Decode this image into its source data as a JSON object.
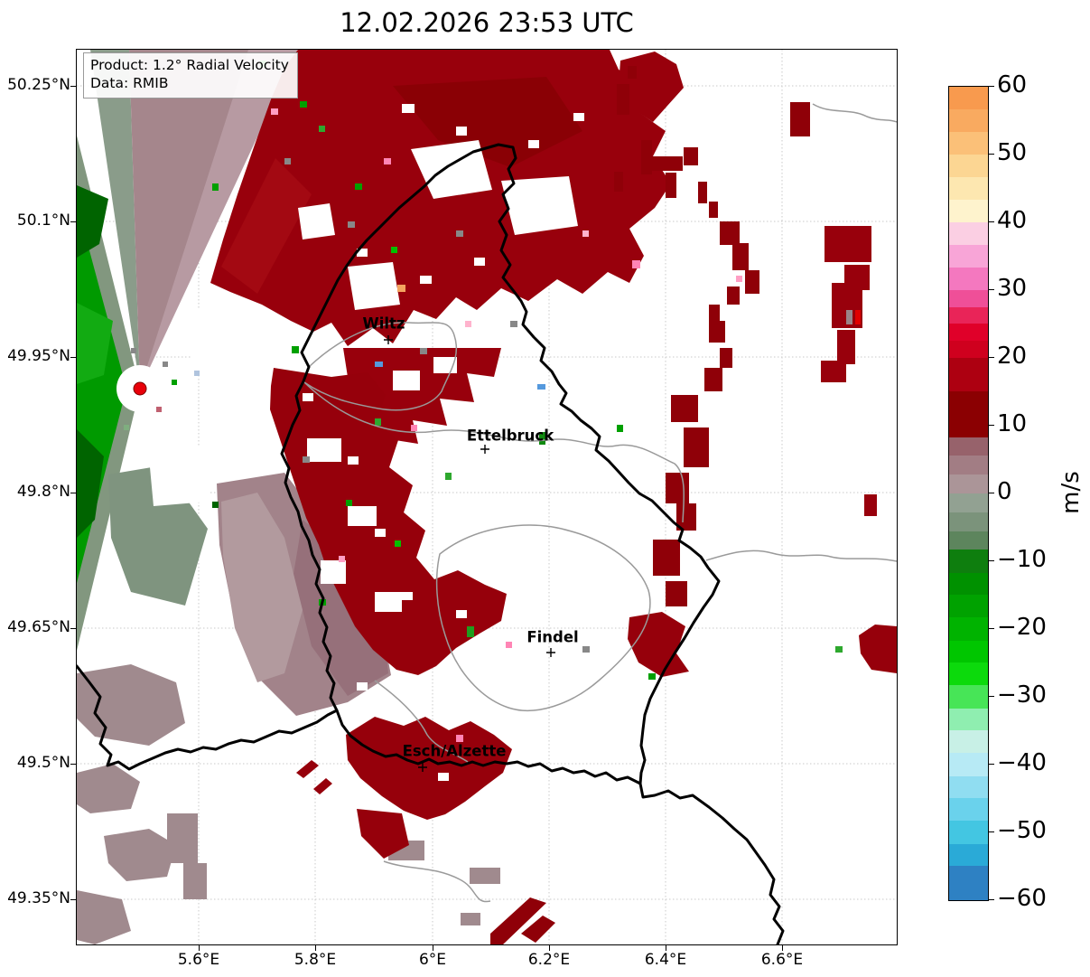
{
  "title": "12.02.2026 23:53 UTC",
  "info_box": {
    "product_label": "Product: 1.2° Radial Velocity",
    "data_label": "Data: RMIB"
  },
  "axes": {
    "x_ticks": [
      "5.6°E",
      "5.8°E",
      "6°E",
      "6.2°E",
      "6.4°E",
      "6.6°E"
    ],
    "y_ticks": [
      "50.25°N",
      "50.1°N",
      "49.95°N",
      "49.8°N",
      "49.65°N",
      "49.5°N",
      "49.35°N"
    ]
  },
  "cities": [
    {
      "name": "Wiltz"
    },
    {
      "name": "Ettelbruck"
    },
    {
      "name": "Findel"
    },
    {
      "name": "Esch/Alzette"
    }
  ],
  "colorbar": {
    "unit": "m/s",
    "tick_labels": [
      "60",
      "50",
      "40",
      "30",
      "20",
      "10",
      "0",
      "−10",
      "−20",
      "−30",
      "−40",
      "−50",
      "−60"
    ],
    "bands": [
      {
        "from": 60,
        "to": 56.7,
        "color": "#f89a4e"
      },
      {
        "from": 56.7,
        "to": 53.3,
        "color": "#f9aa60"
      },
      {
        "from": 53.3,
        "to": 50,
        "color": "#fbc078"
      },
      {
        "from": 50,
        "to": 46.7,
        "color": "#fcd693"
      },
      {
        "from": 46.7,
        "to": 43.3,
        "color": "#fde7b0"
      },
      {
        "from": 43.3,
        "to": 40,
        "color": "#fef3cd"
      },
      {
        "from": 40,
        "to": 36.7,
        "color": "#fbcfe3"
      },
      {
        "from": 36.7,
        "to": 33.3,
        "color": "#f8a5d7"
      },
      {
        "from": 33.3,
        "to": 30,
        "color": "#f478bf"
      },
      {
        "from": 30,
        "to": 27.5,
        "color": "#ef4f98"
      },
      {
        "from": 27.5,
        "to": 25,
        "color": "#e92458"
      },
      {
        "from": 25,
        "to": 22.5,
        "color": "#e00029"
      },
      {
        "from": 22.5,
        "to": 20,
        "color": "#cf001e"
      },
      {
        "from": 20,
        "to": 15,
        "color": "#ad0011"
      },
      {
        "from": 15,
        "to": 8.3,
        "color": "#8b0002"
      },
      {
        "from": 8.3,
        "to": 5.6,
        "color": "#97626b"
      },
      {
        "from": 5.6,
        "to": 2.8,
        "color": "#a27d84"
      },
      {
        "from": 2.8,
        "to": 0,
        "color": "#ab9598"
      },
      {
        "from": 0,
        "to": -2.8,
        "color": "#92a192"
      },
      {
        "from": -2.8,
        "to": -5.6,
        "color": "#7b937b"
      },
      {
        "from": -5.6,
        "to": -8.3,
        "color": "#5d855d"
      },
      {
        "from": -8.3,
        "to": -11.7,
        "color": "#0e7e0e"
      },
      {
        "from": -11.7,
        "to": -15,
        "color": "#009100"
      },
      {
        "from": -15,
        "to": -18.3,
        "color": "#00a200"
      },
      {
        "from": -18.3,
        "to": -21.7,
        "color": "#00b300"
      },
      {
        "from": -21.7,
        "to": -25,
        "color": "#00c600"
      },
      {
        "from": -25,
        "to": -28.3,
        "color": "#0cda0c"
      },
      {
        "from": -28.3,
        "to": -31.7,
        "color": "#47e557"
      },
      {
        "from": -31.7,
        "to": -35,
        "color": "#8feeb0"
      },
      {
        "from": -35,
        "to": -38.3,
        "color": "#c8f0e6"
      },
      {
        "from": -38.3,
        "to": -41.7,
        "color": "#b7eaf5"
      },
      {
        "from": -41.7,
        "to": -45,
        "color": "#90ddf1"
      },
      {
        "from": -45,
        "to": -48.3,
        "color": "#6ad2ec"
      },
      {
        "from": -48.3,
        "to": -51.7,
        "color": "#43c6e2"
      },
      {
        "from": -51.7,
        "to": -55,
        "color": "#2aaad7"
      },
      {
        "from": -55,
        "to": -60,
        "color": "#2e81c3"
      }
    ]
  },
  "palette": {
    "away_dark_red": "#8b0000",
    "toward_green": "#009a00",
    "near_zero_positive_mauve": "#a5868c",
    "near_zero_negative_graygreen": "#7f947f",
    "background": "#ffffff",
    "country_border": "#000000",
    "district_border": "#9a9a9a",
    "grid": "#c9c9c9",
    "radar_marker": "#e8000a"
  },
  "chart_data": {
    "type": "heatmap",
    "title": "12.02.2026 23:53 UTC",
    "product": "1.2° Radial Velocity",
    "data_provider": "RMIB",
    "unit": "m/s",
    "value_range": [
      -60,
      60
    ],
    "colorbar_ticks": [
      60,
      50,
      40,
      30,
      20,
      10,
      0,
      -10,
      -20,
      -30,
      -40,
      -50,
      -60
    ],
    "x_axis": {
      "label_format": "°E",
      "range": [
        5.39,
        6.8
      ],
      "ticks": [
        5.6,
        5.8,
        6.0,
        6.2,
        6.4,
        6.6
      ]
    },
    "y_axis": {
      "label_format": "°N",
      "range": [
        49.29,
        50.29
      ],
      "ticks": [
        50.25,
        50.1,
        49.95,
        49.8,
        49.65,
        49.5,
        49.35
      ]
    },
    "radar_site": {
      "lon": 5.5,
      "lat": 49.91
    },
    "cities": [
      {
        "name": "Wiltz",
        "lon": 5.93,
        "lat": 49.97
      },
      {
        "name": "Ettelbruck",
        "lon": 6.09,
        "lat": 49.84
      },
      {
        "name": "Findel",
        "lon": 6.2,
        "lat": 49.62
      },
      {
        "name": "Esch/Alzette",
        "lon": 5.98,
        "lat": 49.49
      }
    ],
    "pattern_summary": "Doppler radial velocity: receding flow (dark red, ~+10 to +25 m/s) over a broad sector east/northeast/southeast of the radar; approaching flow (green, ~-10 to -25 m/s) west of the radar; near-zero band (gray-mauve/gray-green) aligned roughly north-south through the radar site; large echo-free (white) areas over central and eastern Luxembourg."
  }
}
